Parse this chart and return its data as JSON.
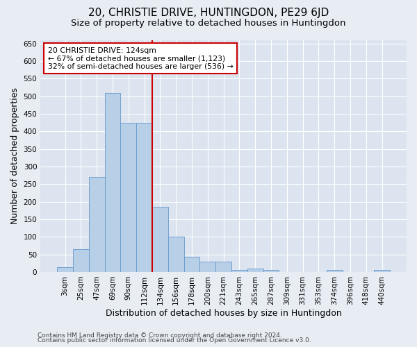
{
  "title": "20, CHRISTIE DRIVE, HUNTINGDON, PE29 6JD",
  "subtitle": "Size of property relative to detached houses in Huntingdon",
  "xlabel": "Distribution of detached houses by size in Huntingdon",
  "ylabel": "Number of detached properties",
  "footer1": "Contains HM Land Registry data © Crown copyright and database right 2024.",
  "footer2": "Contains public sector information licensed under the Open Government Licence v3.0.",
  "bar_labels": [
    "3sqm",
    "25sqm",
    "47sqm",
    "69sqm",
    "90sqm",
    "112sqm",
    "134sqm",
    "156sqm",
    "178sqm",
    "200sqm",
    "221sqm",
    "243sqm",
    "265sqm",
    "287sqm",
    "309sqm",
    "331sqm",
    "353sqm",
    "374sqm",
    "396sqm",
    "418sqm",
    "440sqm"
  ],
  "bar_values": [
    13,
    65,
    270,
    510,
    425,
    425,
    185,
    100,
    43,
    30,
    30,
    5,
    10,
    5,
    0,
    0,
    0,
    5,
    0,
    0,
    5
  ],
  "bar_color": "#b8cfe8",
  "bar_edge_color": "#6699cc",
  "vline_color": "#cc0000",
  "annotation_text": "20 CHRISTIE DRIVE: 124sqm\n← 67% of detached houses are smaller (1,123)\n32% of semi-detached houses are larger (536) →",
  "annotation_box_color": "#ffffff",
  "annotation_box_edge": "#cc0000",
  "ylim": [
    0,
    660
  ],
  "yticks": [
    0,
    50,
    100,
    150,
    200,
    250,
    300,
    350,
    400,
    450,
    500,
    550,
    600,
    650
  ],
  "bg_color": "#e8edf4",
  "plot_bg_color": "#dce4f0",
  "grid_color": "#ffffff",
  "title_fontsize": 11,
  "subtitle_fontsize": 9.5,
  "axis_label_fontsize": 9,
  "tick_fontsize": 7.5,
  "footer_fontsize": 6.5
}
